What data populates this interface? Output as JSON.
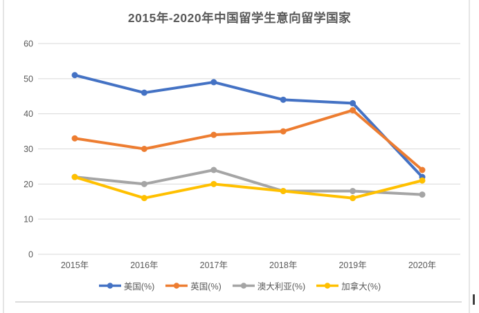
{
  "chart_data": {
    "type": "line",
    "title": "2015年-2020年中国留学生意向留学国家",
    "categories": [
      "2015年",
      "2016年",
      "2017年",
      "2018年",
      "2019年",
      "2020年"
    ],
    "series": [
      {
        "name": "美国(%)",
        "color": "#4472C4",
        "values": [
          51,
          46,
          49,
          44,
          43,
          22
        ]
      },
      {
        "name": "英国(%)",
        "color": "#ED7D31",
        "values": [
          33,
          30,
          34,
          35,
          41,
          24
        ]
      },
      {
        "name": "澳大利亚(%)",
        "color": "#A5A5A5",
        "values": [
          22,
          20,
          24,
          18,
          18,
          17
        ]
      },
      {
        "name": "加拿大(%)",
        "color": "#FFC000",
        "values": [
          22,
          16,
          20,
          18,
          16,
          21
        ]
      }
    ],
    "ylim": [
      0,
      60
    ],
    "yticks": [
      0,
      10,
      20,
      30,
      40,
      50,
      60
    ],
    "grid": true,
    "legend_position": "bottom"
  },
  "page": {
    "background": "#ffffff",
    "border_color": "#e5e5e5",
    "grid_color": "#d9d9d9",
    "text_color": "#595959"
  }
}
